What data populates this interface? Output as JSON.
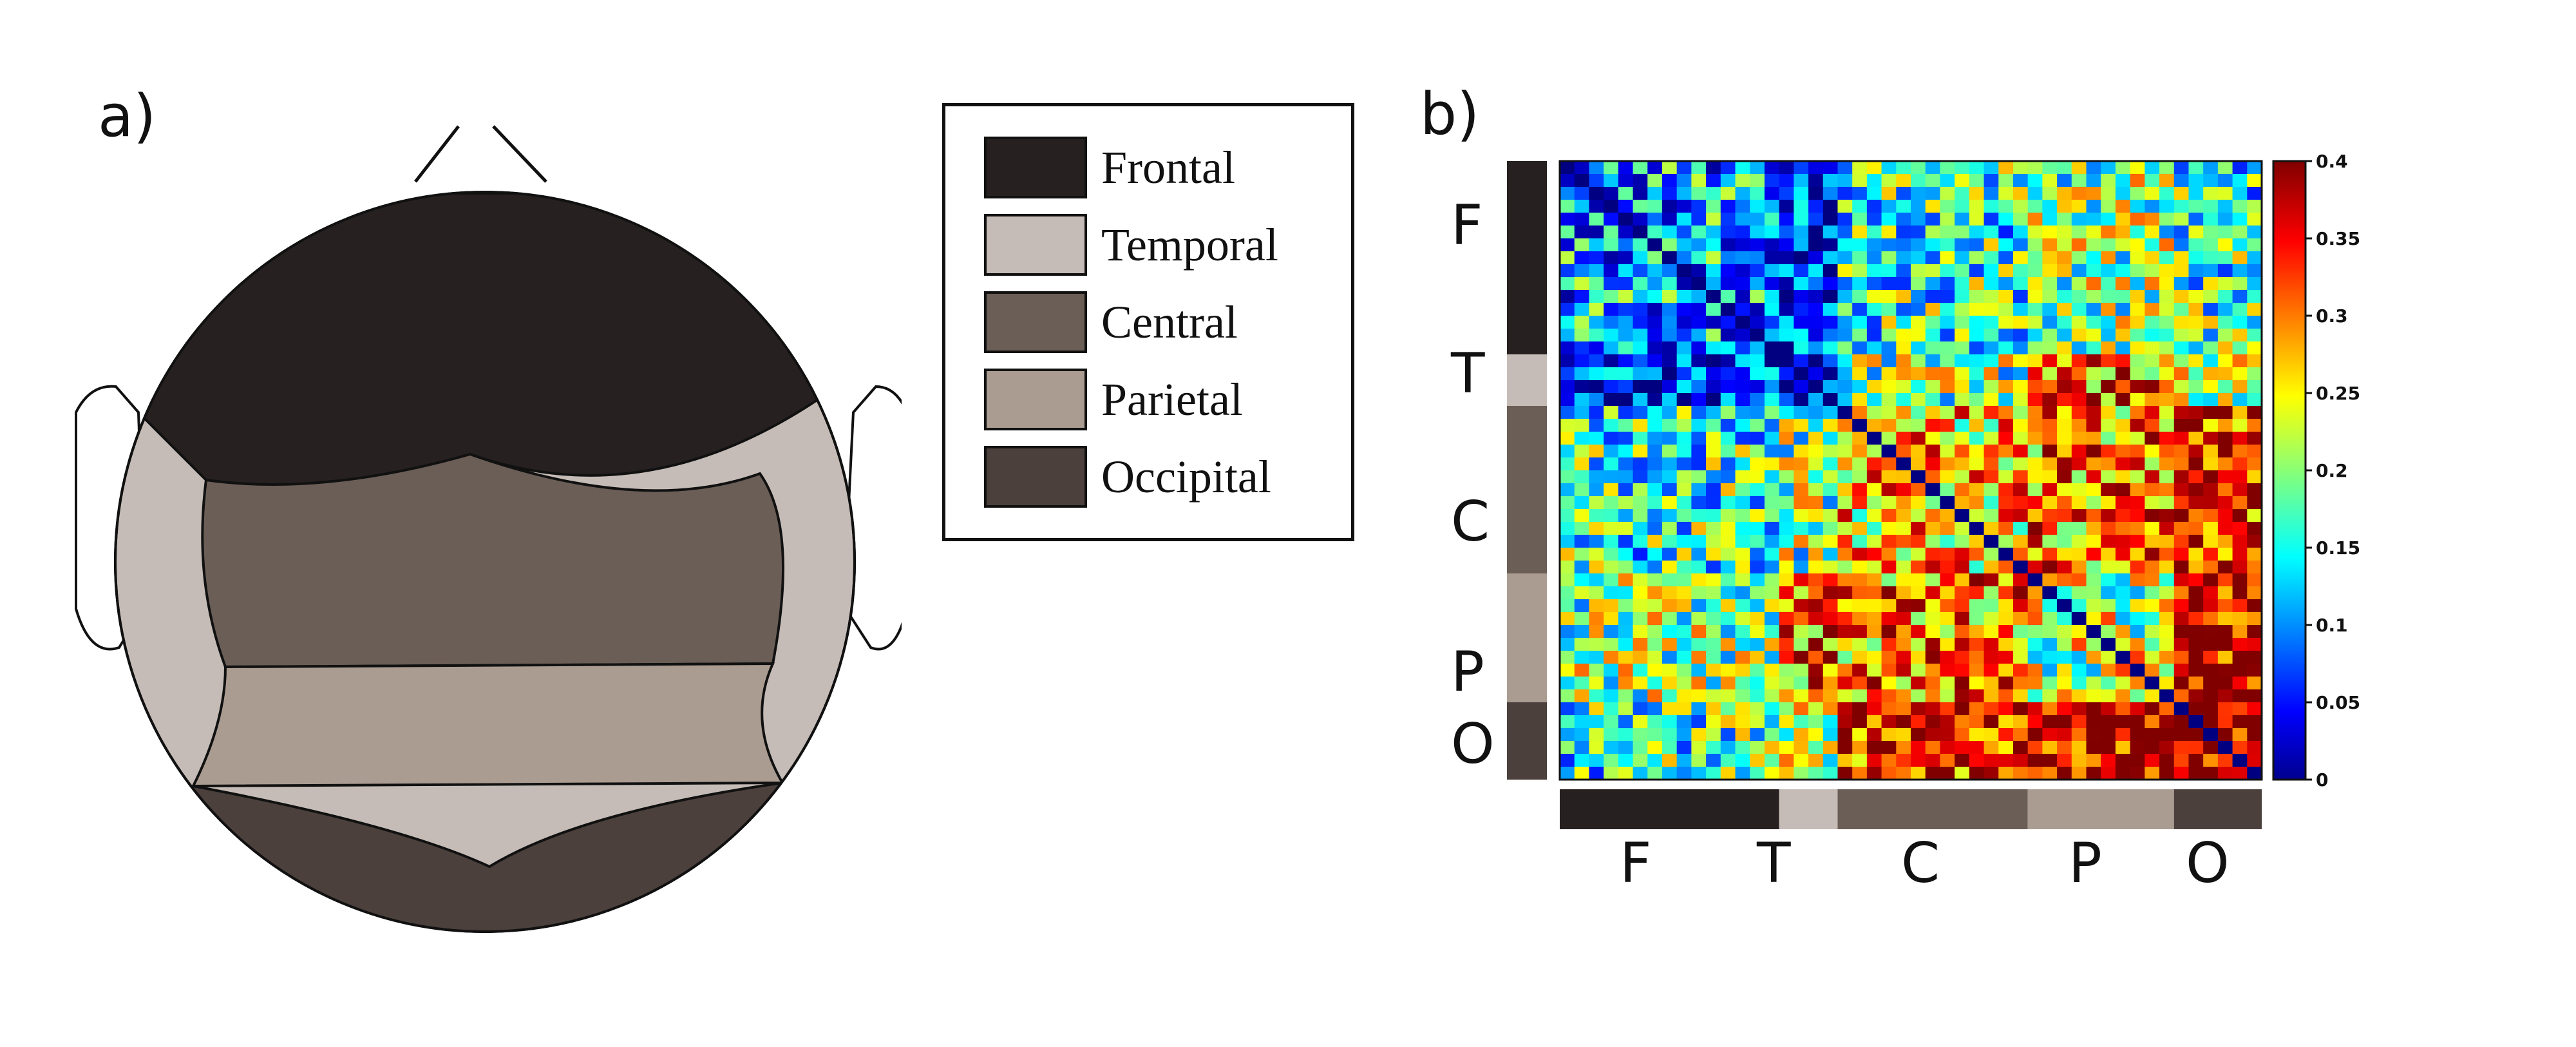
{
  "panel_a": {
    "label": "a)",
    "legend": [
      {
        "label": "Frontal",
        "color": "#262120"
      },
      {
        "label": "Temporal",
        "color": "#c6bcb7"
      },
      {
        "label": "Central",
        "color": "#6b5e56"
      },
      {
        "label": "Parietal",
        "color": "#ab9c92"
      },
      {
        "label": "Occipital",
        "color": "#4b403c"
      }
    ]
  },
  "panel_b": {
    "label": "b)",
    "row_labels": [
      "F",
      "T",
      "C",
      "P",
      "O"
    ],
    "col_labels": [
      "F",
      "T",
      "C",
      "P",
      "O"
    ],
    "colorbar": {
      "min": 0,
      "max": 0.4,
      "ticks": [
        "0.4",
        "0.35",
        "0.3",
        "0.25",
        "0.2",
        "0.15",
        "0.1",
        "0.05",
        "0"
      ],
      "colormap": "jet"
    }
  },
  "chart_data": {
    "type": "heatmap",
    "title": "",
    "matrix_size": 48,
    "symmetric": true,
    "groups": [
      {
        "name": "F",
        "count": 15,
        "color": "#262120"
      },
      {
        "name": "T",
        "count": 4,
        "color": "#c6bcb7"
      },
      {
        "name": "C",
        "count": 13,
        "color": "#6b5e56"
      },
      {
        "name": "P",
        "count": 10,
        "color": "#ab9c92"
      },
      {
        "name": "O",
        "count": 6,
        "color": "#4b403c"
      }
    ],
    "value_range": [
      0,
      0.4
    ],
    "approx_block_means": {
      "F-F": 0.12,
      "F-T": 0.05,
      "F-C": 0.17,
      "F-P": 0.2,
      "F-O": 0.17,
      "T-T": 0.06,
      "T-C": 0.2,
      "T-P": 0.3,
      "T-O": 0.2,
      "C-C": 0.27,
      "C-P": 0.3,
      "C-O": 0.34,
      "P-P": 0.22,
      "P-O": 0.38,
      "O-O": 0.4
    },
    "diagonal": 0
  }
}
